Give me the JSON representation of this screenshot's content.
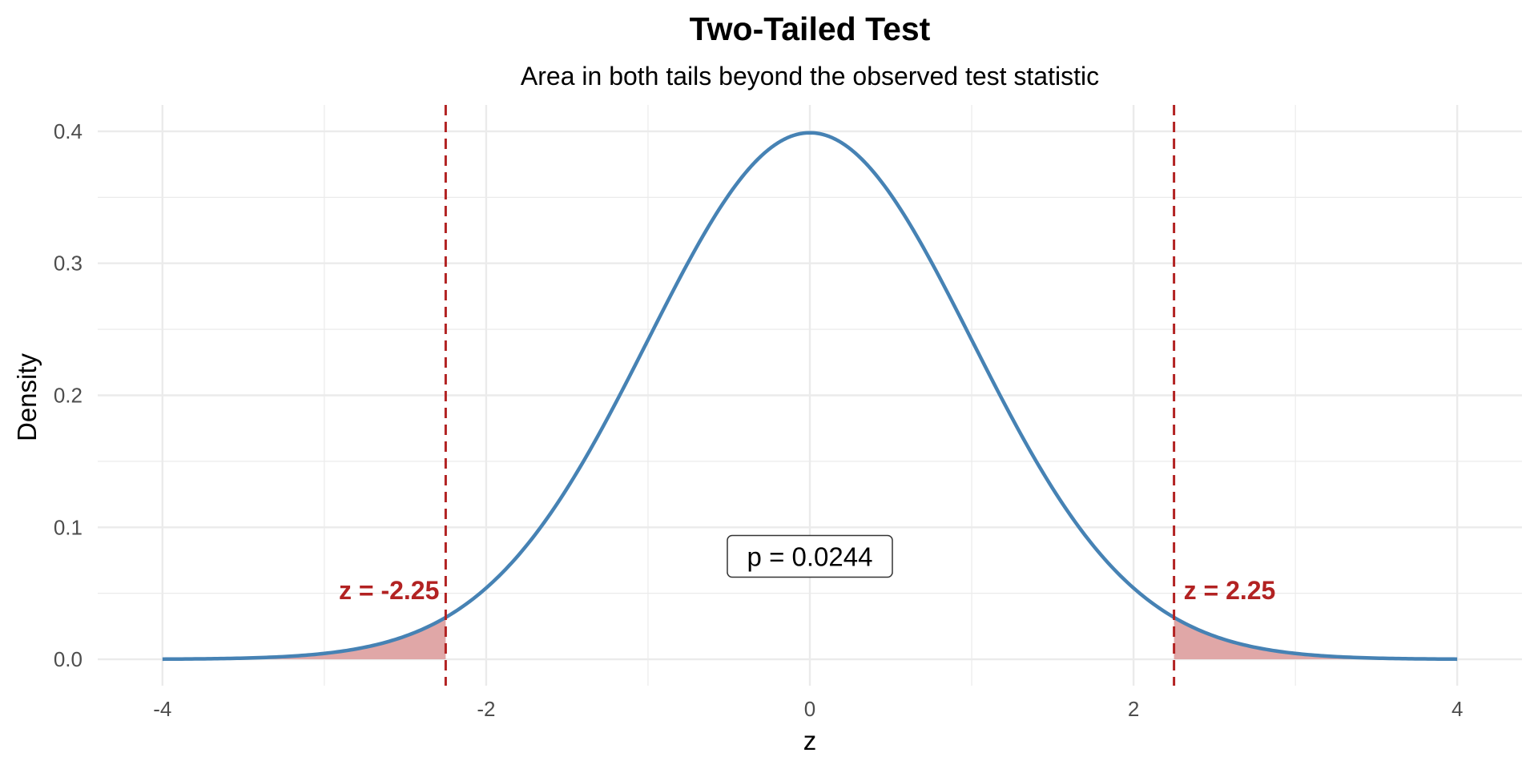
{
  "chart_data": {
    "type": "area",
    "title": "Two-Tailed Test",
    "subtitle": "Area in both tails beyond the observed test statistic",
    "xlabel": "z",
    "ylabel": "Density",
    "xlim": [
      -4.4,
      4.4
    ],
    "ylim": [
      -0.02,
      0.42
    ],
    "x_ticks": [
      -4,
      -2,
      0,
      2,
      4
    ],
    "x_tick_labels": [
      "-4",
      "-2",
      "0",
      "2",
      "4"
    ],
    "y_ticks": [
      0.0,
      0.1,
      0.2,
      0.3,
      0.4
    ],
    "y_tick_labels": [
      "0.0",
      "0.1",
      "0.2",
      "0.3",
      "0.4"
    ],
    "grid": true,
    "curve": {
      "distribution": "standard normal",
      "x_range": [
        -4,
        4
      ],
      "peak": {
        "x": 0,
        "y": 0.399
      }
    },
    "critical_values": [
      -2.25,
      2.25
    ],
    "shaded_regions": [
      {
        "from": -4,
        "to": -2.25
      },
      {
        "from": 2.25,
        "to": 4
      }
    ],
    "annotations": {
      "z_left": "z = -2.25",
      "z_right": "z = 2.25",
      "p_value": "p = 0.0244",
      "p_value_position": {
        "x": 0,
        "y": 0.078
      }
    },
    "colors": {
      "curve": "#4682B4",
      "shade": "#E0A7A7",
      "critical_line": "#B22222",
      "grid": "#EBEBEB",
      "tick_text": "#4D4D4D"
    }
  }
}
